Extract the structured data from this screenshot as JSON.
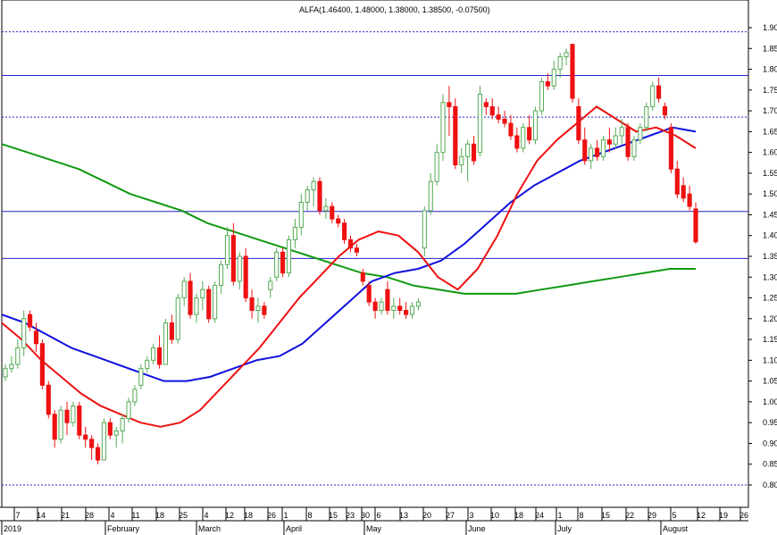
{
  "chart_data": {
    "type": "candlestick",
    "title": "ALFA(1.46400, 1.48000, 1.38000, 1.38500, -0.07500)",
    "ylim": [
      0.77,
      1.93
    ],
    "y_ticks": [
      "1.90",
      "1.85",
      "1.80",
      "1.75",
      "1.70",
      "1.65",
      "1.60",
      "1.55",
      "1.50",
      "1.45",
      "1.40",
      "1.35",
      "1.30",
      "1.25",
      "1.20",
      "1.15",
      "1.10",
      "1.05",
      "1.00",
      "0.95",
      "0.90",
      "0.85",
      "0.80"
    ],
    "x_day_labels": [
      "7",
      "14",
      "21",
      "28",
      "4",
      "11",
      "18",
      "25",
      "4",
      "12",
      "18",
      "26",
      "1",
      "8",
      "15",
      "23",
      "30",
      "6",
      "13",
      "20",
      "27",
      "3",
      "10",
      "18",
      "24",
      "1",
      "8",
      "15",
      "22",
      "29",
      "5",
      "12",
      "19",
      "26"
    ],
    "x_month_labels": [
      "2019",
      "February",
      "March",
      "April",
      "May",
      "June",
      "July",
      "August"
    ],
    "horizontal_levels": [
      {
        "value": 1.89,
        "style": "dotted"
      },
      {
        "value": 1.785,
        "style": "solid"
      },
      {
        "value": 1.685,
        "style": "dotted"
      },
      {
        "value": 1.458,
        "style": "solid"
      },
      {
        "value": 1.345,
        "style": "solid"
      },
      {
        "value": 0.8,
        "style": "dotted"
      }
    ],
    "colors": {
      "up": "#22aa22",
      "down": "#ee1111",
      "ma_fast": "#ee1111",
      "ma_mid": "#1111dd",
      "ma_slow": "#119911",
      "level": "#2222cc",
      "grid": "#999999"
    },
    "candles": [
      {
        "o": 1.06,
        "h": 1.09,
        "l": 1.05,
        "c": 1.08
      },
      {
        "o": 1.08,
        "h": 1.11,
        "l": 1.07,
        "c": 1.09
      },
      {
        "o": 1.09,
        "h": 1.15,
        "l": 1.08,
        "c": 1.13
      },
      {
        "o": 1.13,
        "h": 1.22,
        "l": 1.11,
        "c": 1.2
      },
      {
        "o": 1.21,
        "h": 1.22,
        "l": 1.17,
        "c": 1.18
      },
      {
        "o": 1.17,
        "h": 1.19,
        "l": 1.12,
        "c": 1.14
      },
      {
        "o": 1.14,
        "h": 1.15,
        "l": 1.03,
        "c": 1.04
      },
      {
        "o": 1.04,
        "h": 1.05,
        "l": 0.96,
        "c": 0.97
      },
      {
        "o": 0.97,
        "h": 0.98,
        "l": 0.89,
        "c": 0.91
      },
      {
        "o": 0.91,
        "h": 0.99,
        "l": 0.9,
        "c": 0.98
      },
      {
        "o": 0.98,
        "h": 1.0,
        "l": 0.92,
        "c": 0.95
      },
      {
        "o": 0.95,
        "h": 1.0,
        "l": 0.94,
        "c": 0.99
      },
      {
        "o": 0.99,
        "h": 1.0,
        "l": 0.91,
        "c": 0.92
      },
      {
        "o": 0.92,
        "h": 0.94,
        "l": 0.89,
        "c": 0.91
      },
      {
        "o": 0.91,
        "h": 0.92,
        "l": 0.86,
        "c": 0.89
      },
      {
        "o": 0.89,
        "h": 0.9,
        "l": 0.85,
        "c": 0.86
      },
      {
        "o": 0.86,
        "h": 0.96,
        "l": 0.86,
        "c": 0.95
      },
      {
        "o": 0.95,
        "h": 0.96,
        "l": 0.91,
        "c": 0.92
      },
      {
        "o": 0.92,
        "h": 0.94,
        "l": 0.89,
        "c": 0.93
      },
      {
        "o": 0.93,
        "h": 0.97,
        "l": 0.9,
        "c": 0.96
      },
      {
        "o": 0.96,
        "h": 1.01,
        "l": 0.95,
        "c": 1.0
      },
      {
        "o": 1.0,
        "h": 1.04,
        "l": 0.99,
        "c": 1.03
      },
      {
        "o": 1.04,
        "h": 1.09,
        "l": 1.03,
        "c": 1.08
      },
      {
        "o": 1.08,
        "h": 1.11,
        "l": 1.07,
        "c": 1.1
      },
      {
        "o": 1.1,
        "h": 1.14,
        "l": 1.09,
        "c": 1.13
      },
      {
        "o": 1.13,
        "h": 1.16,
        "l": 1.08,
        "c": 1.09
      },
      {
        "o": 1.09,
        "h": 1.2,
        "l": 1.09,
        "c": 1.19
      },
      {
        "o": 1.19,
        "h": 1.21,
        "l": 1.14,
        "c": 1.15
      },
      {
        "o": 1.15,
        "h": 1.26,
        "l": 1.14,
        "c": 1.25
      },
      {
        "o": 1.25,
        "h": 1.3,
        "l": 1.23,
        "c": 1.29
      },
      {
        "o": 1.29,
        "h": 1.31,
        "l": 1.2,
        "c": 1.21
      },
      {
        "o": 1.21,
        "h": 1.26,
        "l": 1.19,
        "c": 1.25
      },
      {
        "o": 1.25,
        "h": 1.29,
        "l": 1.22,
        "c": 1.27
      },
      {
        "o": 1.27,
        "h": 1.28,
        "l": 1.19,
        "c": 1.2
      },
      {
        "o": 1.2,
        "h": 1.29,
        "l": 1.19,
        "c": 1.28
      },
      {
        "o": 1.28,
        "h": 1.34,
        "l": 1.26,
        "c": 1.33
      },
      {
        "o": 1.33,
        "h": 1.42,
        "l": 1.32,
        "c": 1.4
      },
      {
        "o": 1.4,
        "h": 1.43,
        "l": 1.28,
        "c": 1.29
      },
      {
        "o": 1.29,
        "h": 1.36,
        "l": 1.27,
        "c": 1.35
      },
      {
        "o": 1.35,
        "h": 1.37,
        "l": 1.24,
        "c": 1.25
      },
      {
        "o": 1.25,
        "h": 1.27,
        "l": 1.2,
        "c": 1.22
      },
      {
        "o": 1.22,
        "h": 1.25,
        "l": 1.19,
        "c": 1.23
      },
      {
        "o": 1.23,
        "h": 1.24,
        "l": 1.2,
        "c": 1.21
      },
      {
        "o": 1.27,
        "h": 1.3,
        "l": 1.25,
        "c": 1.29
      },
      {
        "o": 1.3,
        "h": 1.37,
        "l": 1.29,
        "c": 1.36
      },
      {
        "o": 1.36,
        "h": 1.37,
        "l": 1.3,
        "c": 1.31
      },
      {
        "o": 1.31,
        "h": 1.4,
        "l": 1.3,
        "c": 1.39
      },
      {
        "o": 1.39,
        "h": 1.44,
        "l": 1.37,
        "c": 1.42
      },
      {
        "o": 1.42,
        "h": 1.5,
        "l": 1.4,
        "c": 1.48
      },
      {
        "o": 1.48,
        "h": 1.52,
        "l": 1.46,
        "c": 1.51
      },
      {
        "o": 1.51,
        "h": 1.54,
        "l": 1.47,
        "c": 1.53
      },
      {
        "o": 1.53,
        "h": 1.54,
        "l": 1.45,
        "c": 1.46
      },
      {
        "o": 1.46,
        "h": 1.49,
        "l": 1.44,
        "c": 1.47
      },
      {
        "o": 1.47,
        "h": 1.48,
        "l": 1.43,
        "c": 1.44
      },
      {
        "o": 1.44,
        "h": 1.45,
        "l": 1.42,
        "c": 1.43
      },
      {
        "o": 1.43,
        "h": 1.44,
        "l": 1.38,
        "c": 1.39
      },
      {
        "o": 1.39,
        "h": 1.4,
        "l": 1.36,
        "c": 1.37
      },
      {
        "o": 1.37,
        "h": 1.38,
        "l": 1.35,
        "c": 1.36
      },
      {
        "o": 1.31,
        "h": 1.32,
        "l": 1.28,
        "c": 1.29
      },
      {
        "o": 1.28,
        "h": 1.29,
        "l": 1.23,
        "c": 1.24
      },
      {
        "o": 1.24,
        "h": 1.25,
        "l": 1.2,
        "c": 1.22
      },
      {
        "o": 1.22,
        "h": 1.25,
        "l": 1.21,
        "c": 1.24
      },
      {
        "o": 1.27,
        "h": 1.29,
        "l": 1.21,
        "c": 1.22
      },
      {
        "o": 1.22,
        "h": 1.25,
        "l": 1.2,
        "c": 1.23
      },
      {
        "o": 1.23,
        "h": 1.25,
        "l": 1.21,
        "c": 1.22
      },
      {
        "o": 1.22,
        "h": 1.24,
        "l": 1.2,
        "c": 1.21
      },
      {
        "o": 1.21,
        "h": 1.24,
        "l": 1.2,
        "c": 1.23
      },
      {
        "o": 1.23,
        "h": 1.25,
        "l": 1.22,
        "c": 1.24
      },
      {
        "o": 1.37,
        "h": 1.47,
        "l": 1.35,
        "c": 1.46
      },
      {
        "o": 1.46,
        "h": 1.55,
        "l": 1.45,
        "c": 1.53
      },
      {
        "o": 1.53,
        "h": 1.62,
        "l": 1.52,
        "c": 1.6
      },
      {
        "o": 1.6,
        "h": 1.74,
        "l": 1.58,
        "c": 1.72
      },
      {
        "o": 1.72,
        "h": 1.76,
        "l": 1.64,
        "c": 1.71
      },
      {
        "o": 1.71,
        "h": 1.73,
        "l": 1.56,
        "c": 1.57
      },
      {
        "o": 1.57,
        "h": 1.61,
        "l": 1.55,
        "c": 1.59
      },
      {
        "o": 1.59,
        "h": 1.63,
        "l": 1.53,
        "c": 1.62
      },
      {
        "o": 1.62,
        "h": 1.64,
        "l": 1.57,
        "c": 1.58
      },
      {
        "o": 1.6,
        "h": 1.76,
        "l": 1.59,
        "c": 1.74
      },
      {
        "o": 1.72,
        "h": 1.73,
        "l": 1.69,
        "c": 1.71
      },
      {
        "o": 1.71,
        "h": 1.73,
        "l": 1.68,
        "c": 1.69
      },
      {
        "o": 1.69,
        "h": 1.71,
        "l": 1.67,
        "c": 1.68
      },
      {
        "o": 1.68,
        "h": 1.7,
        "l": 1.66,
        "c": 1.67
      },
      {
        "o": 1.67,
        "h": 1.69,
        "l": 1.63,
        "c": 1.64
      },
      {
        "o": 1.64,
        "h": 1.66,
        "l": 1.6,
        "c": 1.61
      },
      {
        "o": 1.61,
        "h": 1.67,
        "l": 1.6,
        "c": 1.66
      },
      {
        "o": 1.66,
        "h": 1.69,
        "l": 1.62,
        "c": 1.63
      },
      {
        "o": 1.63,
        "h": 1.71,
        "l": 1.62,
        "c": 1.7
      },
      {
        "o": 1.7,
        "h": 1.78,
        "l": 1.69,
        "c": 1.77
      },
      {
        "o": 1.77,
        "h": 1.79,
        "l": 1.75,
        "c": 1.76
      },
      {
        "o": 1.76,
        "h": 1.82,
        "l": 1.75,
        "c": 1.8
      },
      {
        "o": 1.8,
        "h": 1.84,
        "l": 1.78,
        "c": 1.83
      },
      {
        "o": 1.83,
        "h": 1.85,
        "l": 1.81,
        "c": 1.84
      },
      {
        "o": 1.86,
        "h": 1.86,
        "l": 1.72,
        "c": 1.73
      },
      {
        "o": 1.71,
        "h": 1.73,
        "l": 1.62,
        "c": 1.63
      },
      {
        "o": 1.63,
        "h": 1.66,
        "l": 1.57,
        "c": 1.58
      },
      {
        "o": 1.58,
        "h": 1.62,
        "l": 1.56,
        "c": 1.61
      },
      {
        "o": 1.61,
        "h": 1.63,
        "l": 1.58,
        "c": 1.59
      },
      {
        "o": 1.59,
        "h": 1.64,
        "l": 1.58,
        "c": 1.63
      },
      {
        "o": 1.63,
        "h": 1.66,
        "l": 1.6,
        "c": 1.62
      },
      {
        "o": 1.62,
        "h": 1.66,
        "l": 1.61,
        "c": 1.64
      },
      {
        "o": 1.64,
        "h": 1.68,
        "l": 1.62,
        "c": 1.66
      },
      {
        "o": 1.66,
        "h": 1.67,
        "l": 1.58,
        "c": 1.59
      },
      {
        "o": 1.59,
        "h": 1.64,
        "l": 1.58,
        "c": 1.63
      },
      {
        "o": 1.63,
        "h": 1.67,
        "l": 1.62,
        "c": 1.66
      },
      {
        "o": 1.66,
        "h": 1.72,
        "l": 1.65,
        "c": 1.71
      },
      {
        "o": 1.71,
        "h": 1.77,
        "l": 1.7,
        "c": 1.76
      },
      {
        "o": 1.76,
        "h": 1.78,
        "l": 1.72,
        "c": 1.73
      },
      {
        "o": 1.71,
        "h": 1.72,
        "l": 1.68,
        "c": 1.69
      },
      {
        "o": 1.66,
        "h": 1.67,
        "l": 1.55,
        "c": 1.56
      },
      {
        "o": 1.56,
        "h": 1.58,
        "l": 1.49,
        "c": 1.5
      },
      {
        "o": 1.52,
        "h": 1.54,
        "l": 1.48,
        "c": 1.49
      },
      {
        "o": 1.5,
        "h": 1.52,
        "l": 1.46,
        "c": 1.47
      },
      {
        "o": 1.464,
        "h": 1.48,
        "l": 1.38,
        "c": 1.385
      }
    ],
    "ma_fast": [
      1.19,
      1.15,
      1.1,
      1.06,
      1.02,
      0.99,
      0.97,
      0.95,
      0.94,
      0.95,
      0.98,
      1.03,
      1.08,
      1.13,
      1.19,
      1.25,
      1.3,
      1.35,
      1.39,
      1.41,
      1.4,
      1.36,
      1.3,
      1.27,
      1.32,
      1.4,
      1.5,
      1.58,
      1.63,
      1.67,
      1.71,
      1.68,
      1.65,
      1.66,
      1.64,
      1.61
    ],
    "ma_mid": [
      1.21,
      1.19,
      1.16,
      1.13,
      1.11,
      1.09,
      1.07,
      1.05,
      1.05,
      1.06,
      1.08,
      1.1,
      1.11,
      1.14,
      1.19,
      1.24,
      1.29,
      1.31,
      1.32,
      1.34,
      1.38,
      1.43,
      1.48,
      1.52,
      1.55,
      1.58,
      1.6,
      1.62,
      1.64,
      1.66,
      1.65
    ],
    "ma_slow": [
      1.62,
      1.6,
      1.58,
      1.56,
      1.53,
      1.5,
      1.48,
      1.46,
      1.43,
      1.41,
      1.39,
      1.37,
      1.35,
      1.33,
      1.31,
      1.3,
      1.28,
      1.27,
      1.26,
      1.26,
      1.26,
      1.27,
      1.28,
      1.29,
      1.3,
      1.31,
      1.32,
      1.32
    ]
  }
}
